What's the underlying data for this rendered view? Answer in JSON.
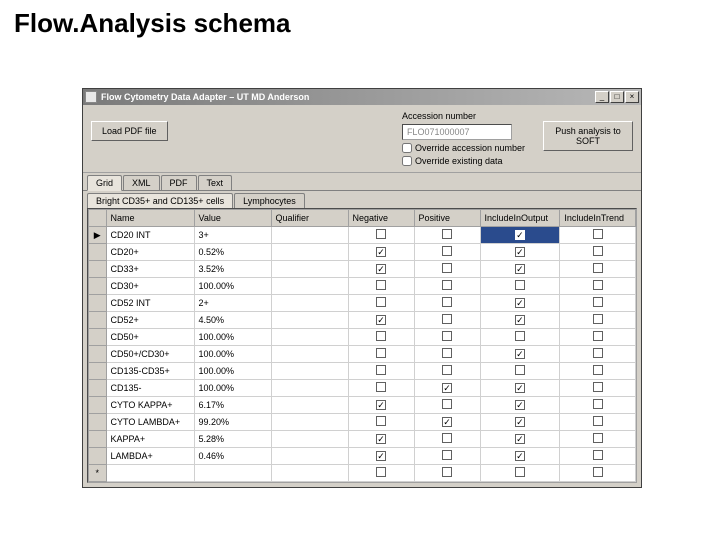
{
  "slide": {
    "title": "Flow.Analysis schema"
  },
  "window": {
    "title": "Flow Cytometry Data Adapter – UT MD Anderson",
    "buttons": {
      "min": "_",
      "max": "□",
      "close": "×"
    }
  },
  "top": {
    "load_btn": "Load PDF file",
    "accession_label": "Accession number",
    "accession_value": "FLO071000007",
    "push_btn": "Push analysis to SOFT",
    "override_accession": "Override accession number",
    "override_existing": "Override existing data"
  },
  "tabs": {
    "items": [
      "Grid",
      "XML",
      "PDF",
      "Text"
    ],
    "active": 0
  },
  "subtabs": {
    "items": [
      "Bright CD35+ and CD135+ cells",
      "Lymphocytes"
    ],
    "active": 0
  },
  "grid": {
    "columns": [
      "Name",
      "Value",
      "Qualifier",
      "Negative",
      "Positive",
      "IncludeInOutput",
      "IncludeInTrend"
    ],
    "rows": [
      {
        "name": "CD20 INT",
        "value": "3+",
        "qual": "",
        "neg": false,
        "pos": false,
        "out": true,
        "trend": false,
        "selected": true,
        "marker": "▶"
      },
      {
        "name": "CD20+",
        "value": "0.52%",
        "qual": "",
        "neg": true,
        "pos": false,
        "out": true,
        "trend": false
      },
      {
        "name": "CD33+",
        "value": "3.52%",
        "qual": "",
        "neg": true,
        "pos": false,
        "out": true,
        "trend": false
      },
      {
        "name": "CD30+",
        "value": "100.00%",
        "qual": "",
        "neg": false,
        "pos": false,
        "out": false,
        "trend": false
      },
      {
        "name": "CD52 INT",
        "value": "2+",
        "qual": "",
        "neg": false,
        "pos": false,
        "out": true,
        "trend": false
      },
      {
        "name": "CD52+",
        "value": "4.50%",
        "qual": "",
        "neg": true,
        "pos": false,
        "out": true,
        "trend": false
      },
      {
        "name": "CD50+",
        "value": "100.00%",
        "qual": "",
        "neg": false,
        "pos": false,
        "out": false,
        "trend": false
      },
      {
        "name": "CD50+/CD30+",
        "value": "100.00%",
        "qual": "",
        "neg": false,
        "pos": false,
        "out": true,
        "trend": false
      },
      {
        "name": "CD135-CD35+",
        "value": "100.00%",
        "qual": "",
        "neg": false,
        "pos": false,
        "out": false,
        "trend": false
      },
      {
        "name": "CD135-",
        "value": "100.00%",
        "qual": "",
        "neg": false,
        "pos": true,
        "out": true,
        "trend": false
      },
      {
        "name": "CYTO KAPPA+",
        "value": "6.17%",
        "qual": "",
        "neg": true,
        "pos": false,
        "out": true,
        "trend": false
      },
      {
        "name": "CYTO LAMBDA+",
        "value": "99.20%",
        "qual": "",
        "neg": false,
        "pos": true,
        "out": true,
        "trend": false
      },
      {
        "name": "KAPPA+",
        "value": "5.28%",
        "qual": "",
        "neg": true,
        "pos": false,
        "out": true,
        "trend": false
      },
      {
        "name": "LAMBDA+",
        "value": "0.46%",
        "qual": "",
        "neg": true,
        "pos": false,
        "out": true,
        "trend": false
      }
    ],
    "footer_marker": "*"
  }
}
